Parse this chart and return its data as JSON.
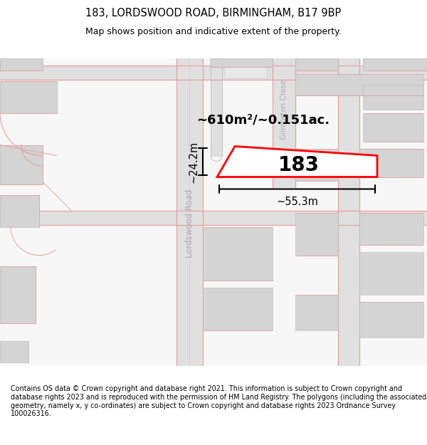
{
  "title_line1": "183, LORDSWOOD ROAD, BIRMINGHAM, B17 9BP",
  "title_line2": "Map shows position and indicative extent of the property.",
  "footer_text": "Contains OS data © Crown copyright and database right 2021. This information is subject to Crown copyright and database rights 2023 and is reproduced with the permission of HM Land Registry. The polygons (including the associated geometry, namely x, y co-ordinates) are subject to Crown copyright and database rights 2023 Ordnance Survey 100026316.",
  "map_bg": "#f7f7f7",
  "pink": "#e8a0a0",
  "gray_road": "#e0e0e0",
  "gray_bld": "#d4d4d4",
  "property_label": "183",
  "area_label": "~610m²/~0.151ac.",
  "width_label": "~55.3m",
  "height_label": "~24.2m",
  "road_label": "Lordswood Road",
  "close_label": "Gilmorton Close"
}
